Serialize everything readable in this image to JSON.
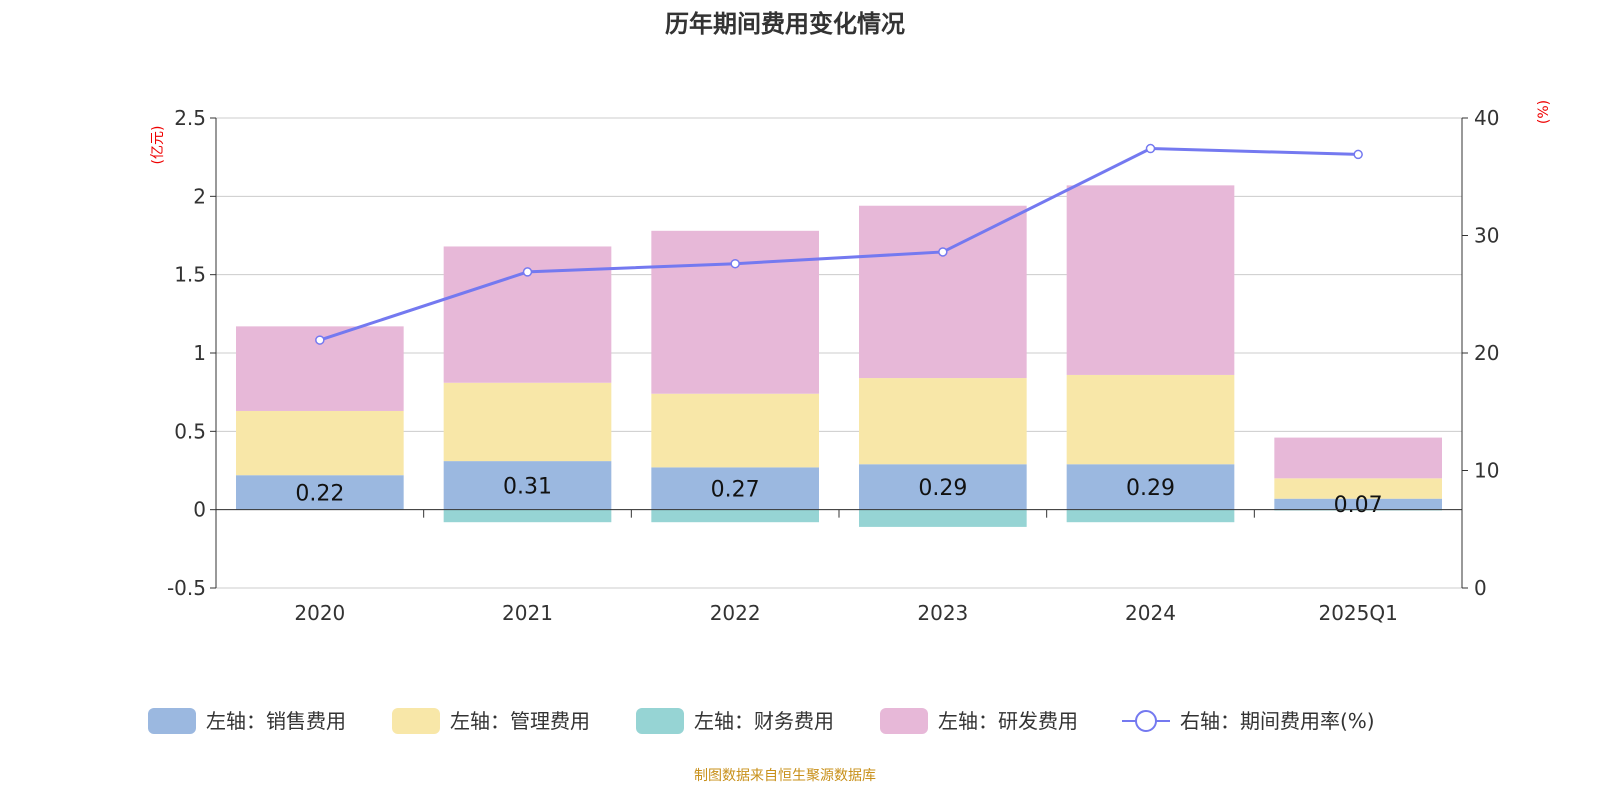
{
  "chart_data": {
    "type": "bar",
    "title": "历年期间费用变化情况",
    "categories": [
      "2020",
      "2021",
      "2022",
      "2023",
      "2024",
      "2025Q1"
    ],
    "left_axis": {
      "unit": "(亿元)",
      "ylim": [
        -0.5,
        2.5
      ],
      "ticks": [
        "2.5",
        "2",
        "1.5",
        "1",
        "0.5",
        "0",
        "-0.5"
      ],
      "tick_values": [
        2.5,
        2,
        1.5,
        1,
        0.5,
        0,
        -0.5
      ]
    },
    "right_axis": {
      "unit": "(%)",
      "ylim": [
        0,
        40
      ],
      "ticks": [
        "40",
        "30",
        "20",
        "10",
        "0"
      ],
      "tick_values": [
        40,
        30,
        20,
        10,
        0
      ]
    },
    "series": [
      {
        "name": "左轴：销售费用",
        "type": "bar",
        "color": "#9bb8e0",
        "values": [
          0.22,
          0.31,
          0.27,
          0.29,
          0.29,
          0.07
        ],
        "labels": [
          "0.22",
          "0.31",
          "0.27",
          "0.29",
          "0.29",
          "0.07"
        ]
      },
      {
        "name": "左轴：管理费用",
        "type": "bar",
        "color": "#f8e7a8",
        "values": [
          0.41,
          0.5,
          0.47,
          0.55,
          0.57,
          0.13
        ]
      },
      {
        "name": "左轴：财务费用",
        "type": "bar",
        "color": "#96d4d4",
        "values": [
          0.0,
          -0.08,
          -0.08,
          -0.11,
          -0.08,
          -0.005
        ]
      },
      {
        "name": "左轴：研发费用",
        "type": "bar",
        "color": "#e7b8d8",
        "values": [
          0.54,
          0.87,
          1.04,
          1.1,
          1.21,
          0.26
        ]
      },
      {
        "name": "右轴：期间费用率(%)",
        "type": "line",
        "color": "#7479f0",
        "values": [
          21.1,
          26.9,
          27.6,
          28.6,
          37.4,
          36.9
        ]
      }
    ],
    "legend_position": "bottom",
    "grid": true
  },
  "source": "制图数据来自恒生聚源数据库"
}
